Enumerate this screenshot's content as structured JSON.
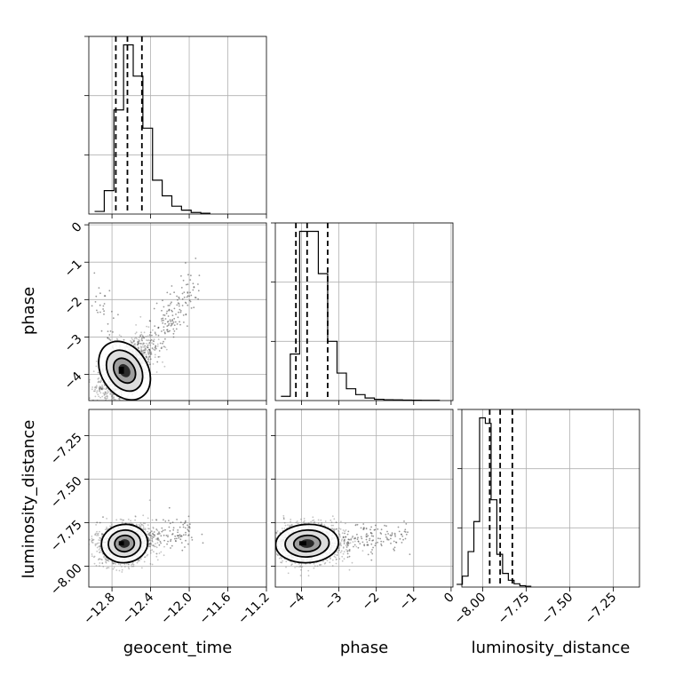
{
  "chart_data": {
    "type": "corner",
    "parameters": [
      "geocent_time",
      "phase",
      "luminosity_distance"
    ],
    "axes": {
      "geocent_time": {
        "label": "geocent_time",
        "range": [
          -13.04,
          -11.2
        ],
        "ticks": [
          -12.8,
          -12.4,
          -12.0,
          -11.6,
          -11.2
        ],
        "tick_labels": [
          "−12.8",
          "−12.4",
          "−12.0",
          "−11.6",
          "−11.2"
        ]
      },
      "phase": {
        "label": "phase",
        "range": [
          -4.7,
          0.05
        ],
        "ticks": [
          -4,
          -3,
          -2,
          -1,
          0
        ],
        "tick_labels": [
          "−4",
          "−3",
          "−2",
          "−1",
          "0"
        ]
      },
      "luminosity_distance": {
        "label": "luminosity_distance",
        "range": [
          -8.12,
          -7.1
        ],
        "ticks": [
          -8.0,
          -7.75,
          -7.5,
          -7.25
        ],
        "tick_labels": [
          "−8.00",
          "−7.75",
          "−7.50",
          "−7.25"
        ]
      }
    },
    "marginals": [
      {
        "parameter": "geocent_time",
        "bin_start": -12.98,
        "bin_width": 0.1,
        "counts": [
          1,
          9,
          40,
          65,
          53,
          33,
          13,
          7,
          3,
          1.5,
          0.6,
          0.3
        ],
        "quantiles": [
          -12.76,
          -12.64,
          -12.49
        ]
      },
      {
        "parameter": "phase",
        "bin_start": -4.55,
        "bin_width": 0.25,
        "counts": [
          1,
          11,
          40,
          40,
          30,
          14,
          6.5,
          2.8,
          1.4,
          0.6,
          0.3,
          0.2,
          0.15,
          0.1,
          0.08,
          0.06,
          0.05
        ],
        "quantiles": [
          -4.15,
          -3.85,
          -3.3
        ]
      },
      {
        "parameter": "luminosity_distance",
        "bin_start": -8.15,
        "bin_width": 0.033,
        "counts": [
          1,
          4,
          13,
          24,
          62,
          60,
          32,
          12,
          5,
          2.5,
          1.2,
          0.5,
          0.3
        ],
        "quantiles": [
          -7.96,
          -7.9,
          -7.83
        ]
      }
    ],
    "joints": [
      {
        "x": "geocent_time",
        "y": "phase",
        "center": [
          -12.67,
          -3.9
        ],
        "spread": [
          0.12,
          0.42
        ],
        "rho": 0.55,
        "n_points": 1500,
        "n_outliers": 240
      },
      {
        "x": "geocent_time",
        "y": "luminosity_distance",
        "center": [
          -12.67,
          -7.87
        ],
        "spread": [
          0.12,
          0.055
        ],
        "rho": 0.15,
        "n_points": 1500,
        "n_outliers": 140
      },
      {
        "x": "phase",
        "y": "luminosity_distance",
        "center": [
          -3.85,
          -7.87
        ],
        "spread": [
          0.42,
          0.055
        ],
        "rho": 0.1,
        "n_points": 1500,
        "n_outliers": 200
      }
    ]
  }
}
